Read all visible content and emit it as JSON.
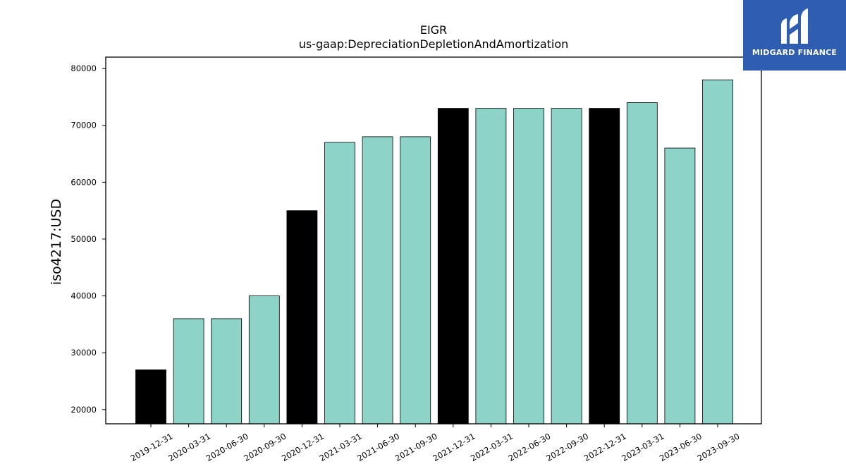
{
  "chart_data": {
    "type": "bar",
    "title": "EIGR",
    "subtitle": "us-gaap:DepreciationDepletionAndAmortization",
    "ylabel": "iso4217:USD",
    "xlabel": "",
    "categories": [
      "2019-12-31",
      "2020-03-31",
      "2020-06-30",
      "2020-09-30",
      "2020-12-31",
      "2021-03-31",
      "2021-06-30",
      "2021-09-30",
      "2021-12-31",
      "2022-03-31",
      "2022-06-30",
      "2022-09-30",
      "2022-12-31",
      "2023-03-31",
      "2023-06-30",
      "2023-09-30"
    ],
    "values": [
      27000,
      36000,
      36000,
      40000,
      55000,
      67000,
      68000,
      68000,
      73000,
      73000,
      73000,
      73000,
      73000,
      74000,
      66000,
      78000
    ],
    "highlighted": [
      true,
      false,
      false,
      false,
      true,
      false,
      false,
      false,
      true,
      false,
      false,
      false,
      true,
      false,
      false,
      false
    ],
    "colors": {
      "highlight": "#000000",
      "normal": "#8dd3c7",
      "edge": "#000000"
    },
    "yticks": [
      20000,
      30000,
      40000,
      50000,
      60000,
      70000,
      80000
    ],
    "ylim": [
      17500,
      82000
    ],
    "grid": false
  },
  "logo": {
    "text": "MIDGARD FINANCE",
    "background": "#2f5db0"
  }
}
